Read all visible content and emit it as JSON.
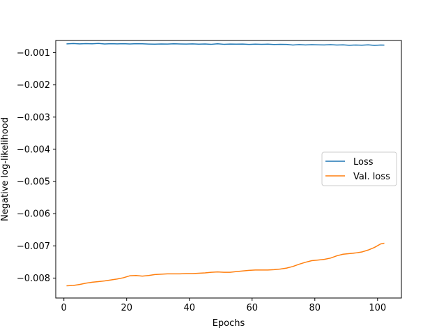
{
  "chart_data": {
    "type": "line",
    "title": "",
    "xlabel": "Epochs",
    "ylabel": "Negative log-likelihood",
    "xlim": [
      -2.6,
      107.6
    ],
    "ylim": [
      -0.00862,
      -0.00062
    ],
    "xticks": [
      0,
      20,
      40,
      60,
      80,
      100
    ],
    "xtick_labels": [
      "0",
      "20",
      "40",
      "60",
      "80",
      "100"
    ],
    "yticks": [
      -0.001,
      -0.002,
      -0.003,
      -0.004,
      -0.005,
      -0.006,
      -0.007,
      -0.008
    ],
    "ytick_labels": [
      "−0.001",
      "−0.002",
      "−0.003",
      "−0.004",
      "−0.005",
      "−0.006",
      "−0.007",
      "−0.008"
    ],
    "grid": false,
    "legend": {
      "position": "center-right"
    },
    "series": [
      {
        "name": "Loss",
        "color": "#1f77b4",
        "x": [
          1,
          3,
          5,
          7,
          9,
          11,
          13,
          15,
          17,
          19,
          21,
          23,
          25,
          27,
          29,
          31,
          33,
          35,
          37,
          39,
          41,
          43,
          45,
          47,
          49,
          51,
          53,
          55,
          57,
          59,
          61,
          63,
          65,
          67,
          69,
          71,
          73,
          75,
          77,
          79,
          81,
          83,
          85,
          87,
          89,
          91,
          93,
          95,
          97,
          99,
          101,
          102
        ],
        "y": [
          -0.000725,
          -0.000715,
          -0.000725,
          -0.000718,
          -0.000722,
          -0.000712,
          -0.000728,
          -0.00072,
          -0.000726,
          -0.00072,
          -0.000728,
          -0.00072,
          -0.000722,
          -0.00073,
          -0.000735,
          -0.000728,
          -0.000732,
          -0.000722,
          -0.000728,
          -0.000732,
          -0.000725,
          -0.000735,
          -0.000728,
          -0.000738,
          -0.000722,
          -0.000738,
          -0.00073,
          -0.000735,
          -0.00073,
          -0.000742,
          -0.000735,
          -0.00074,
          -0.000735,
          -0.000745,
          -0.000738,
          -0.000742,
          -0.000762,
          -0.000748,
          -0.000758,
          -0.00075,
          -0.000755,
          -0.000758,
          -0.00075,
          -0.000762,
          -0.000755,
          -0.00077,
          -0.00076,
          -0.000765,
          -0.000755,
          -0.000772,
          -0.00076,
          -0.000762
        ]
      },
      {
        "name": "Val. loss",
        "color": "#ff7f0e",
        "x": [
          1,
          3,
          5,
          7,
          9,
          11,
          13,
          15,
          17,
          19,
          21,
          23,
          25,
          27,
          29,
          31,
          33,
          35,
          37,
          39,
          41,
          43,
          45,
          47,
          49,
          51,
          53,
          55,
          57,
          59,
          61,
          63,
          65,
          67,
          69,
          71,
          73,
          75,
          77,
          79,
          81,
          83,
          85,
          87,
          89,
          91,
          93,
          95,
          97,
          99,
          101,
          102
        ],
        "y": [
          -0.00824,
          -0.00823,
          -0.0082,
          -0.00816,
          -0.00813,
          -0.00811,
          -0.00809,
          -0.00806,
          -0.00803,
          -0.00799,
          -0.00793,
          -0.00792,
          -0.00794,
          -0.00792,
          -0.00789,
          -0.00788,
          -0.00787,
          -0.00787,
          -0.00787,
          -0.00786,
          -0.00786,
          -0.00785,
          -0.00784,
          -0.00782,
          -0.00781,
          -0.00782,
          -0.00782,
          -0.0078,
          -0.00778,
          -0.00776,
          -0.00775,
          -0.00775,
          -0.00775,
          -0.00774,
          -0.00772,
          -0.00769,
          -0.00764,
          -0.00757,
          -0.00751,
          -0.00746,
          -0.00744,
          -0.00742,
          -0.00738,
          -0.00731,
          -0.00726,
          -0.00724,
          -0.00722,
          -0.00719,
          -0.00713,
          -0.00705,
          -0.00694,
          -0.00692
        ]
      }
    ]
  }
}
